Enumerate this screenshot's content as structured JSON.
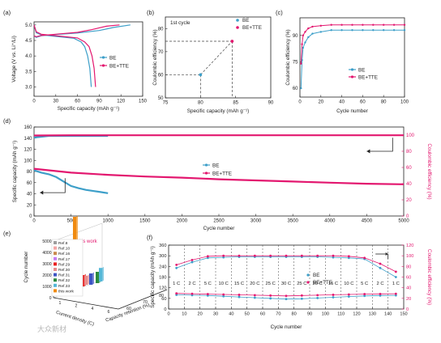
{
  "watermark": "大众新材",
  "colors": {
    "BE": "#3d9fc9",
    "BE_TTE": "#e3176f",
    "dark_line": "#333333"
  },
  "chart_data": [
    {
      "id": "a",
      "panel_label": "(a)",
      "type": "line",
      "xlabel": "Specific capacity (mAh g⁻¹)",
      "ylabel": "Voltage (V vs. Li⁺/Li)",
      "xlim": [
        0,
        150
      ],
      "ylim": [
        2.7,
        5.1
      ],
      "xticks": [
        0,
        30,
        60,
        90,
        120,
        150
      ],
      "yticks": [
        3.0,
        3.5,
        4.0,
        4.5,
        5.0
      ],
      "legend": [
        "BE",
        "BE+TTE"
      ],
      "legend_position": "right",
      "series": [
        {
          "name": "BE",
          "color": "#3d9fc9",
          "charge": [
            [
              0,
              4.65
            ],
            [
              3,
              4.6
            ],
            [
              10,
              4.65
            ],
            [
              30,
              4.69
            ],
            [
              60,
              4.74
            ],
            [
              90,
              4.82
            ],
            [
              110,
              4.92
            ],
            [
              133,
              5.0
            ]
          ],
          "discharge": [
            [
              0,
              5.0
            ],
            [
              3,
              4.75
            ],
            [
              10,
              4.68
            ],
            [
              30,
              4.63
            ],
            [
              55,
              4.57
            ],
            [
              65,
              4.45
            ],
            [
              70,
              4.3
            ],
            [
              74,
              4.0
            ],
            [
              77,
              3.6
            ],
            [
              79,
              3.0
            ]
          ]
        },
        {
          "name": "BE+TTE",
          "color": "#e3176f",
          "charge": [
            [
              0,
              4.65
            ],
            [
              3,
              4.62
            ],
            [
              10,
              4.66
            ],
            [
              30,
              4.7
            ],
            [
              60,
              4.76
            ],
            [
              80,
              4.85
            ],
            [
              100,
              4.96
            ],
            [
              118,
              5.0
            ]
          ],
          "discharge": [
            [
              0,
              5.0
            ],
            [
              3,
              4.78
            ],
            [
              10,
              4.7
            ],
            [
              35,
              4.64
            ],
            [
              60,
              4.58
            ],
            [
              70,
              4.45
            ],
            [
              76,
              4.3
            ],
            [
              80,
              4.0
            ],
            [
              83,
              3.6
            ],
            [
              85,
              3.0
            ]
          ]
        }
      ]
    },
    {
      "id": "b",
      "panel_label": "(b)",
      "type": "scatter",
      "title": "1st cycle",
      "xlabel": "Specific capacity (mAh g⁻¹)",
      "ylabel": "Coulombic efficiency (%)",
      "xlim": [
        75,
        90
      ],
      "ylim": [
        50,
        85
      ],
      "xticks": [
        75,
        80,
        85,
        90
      ],
      "yticks": [
        50,
        60,
        70,
        80
      ],
      "legend": [
        "BE",
        "BE+TTE"
      ],
      "legend_position": "top-right",
      "series": [
        {
          "name": "BE",
          "color": "#3d9fc9",
          "points": [
            [
              80,
              60
            ]
          ]
        },
        {
          "name": "BE+TTE",
          "color": "#e3176f",
          "points": [
            [
              84.5,
              74.5
            ]
          ]
        }
      ]
    },
    {
      "id": "c",
      "panel_label": "(c)",
      "type": "line",
      "xlabel": "Cycle number",
      "ylabel": "Coulombic efficiency (%)",
      "xlim": [
        0,
        100
      ],
      "ylim": [
        55,
        100
      ],
      "xticks": [
        0,
        20,
        40,
        60,
        80,
        100
      ],
      "yticks": [
        60,
        75,
        90
      ],
      "legend": [
        "BE",
        "BE+TTE"
      ],
      "legend_position": "center-right",
      "series": [
        {
          "name": "BE",
          "color": "#3d9fc9",
          "x": [
            1,
            2,
            3,
            5,
            8,
            12,
            20,
            30,
            40,
            50,
            60,
            70,
            80,
            90,
            100
          ],
          "values": [
            60,
            76,
            83,
            86,
            89,
            91,
            92,
            93,
            93,
            93,
            93,
            93,
            93,
            93,
            93
          ]
        },
        {
          "name": "BE+TTE",
          "color": "#e3176f",
          "x": [
            1,
            2,
            3,
            5,
            8,
            12,
            20,
            30,
            40,
            50,
            60,
            70,
            80,
            90,
            100
          ],
          "values": [
            74,
            85,
            90,
            92,
            94,
            95,
            95.5,
            96,
            96,
            96,
            96,
            96,
            96,
            96,
            96
          ]
        }
      ]
    },
    {
      "id": "d",
      "panel_label": "(d)",
      "type": "line",
      "xlabel": "Cycle number",
      "ylabel": "Specific capacity (mAh g⁻¹)",
      "ylabel_right": "Coulombic efficiency (%)",
      "xlim": [
        0,
        5000
      ],
      "ylim": [
        0,
        160
      ],
      "ylim_right": [
        0,
        110
      ],
      "xticks": [
        0,
        500,
        1000,
        1500,
        2000,
        2500,
        3000,
        3500,
        4000,
        4500,
        5000
      ],
      "yticks": [
        0,
        20,
        40,
        60,
        80,
        100,
        120,
        140,
        160
      ],
      "yticks_right": [
        0,
        20,
        40,
        60,
        80,
        100
      ],
      "legend": [
        "BE",
        "BE+TTE"
      ],
      "legend_position": "center",
      "series": [
        {
          "name": "BE",
          "axis": "capacity",
          "color": "#3d9fc9",
          "x": [
            0,
            100,
            200,
            300,
            400,
            500,
            600,
            700,
            800,
            900,
            1000
          ],
          "values": [
            82,
            78,
            75,
            70,
            62,
            54,
            50,
            47,
            45,
            43,
            41
          ]
        },
        {
          "name": "BE+TTE",
          "axis": "capacity",
          "color": "#e3176f",
          "x": [
            0,
            500,
            1000,
            1500,
            2000,
            2500,
            3000,
            3500,
            4000,
            4500,
            5000
          ],
          "values": [
            85,
            78,
            74,
            71,
            69,
            66,
            64,
            62,
            60,
            58,
            57
          ]
        },
        {
          "name": "BE",
          "axis": "efficiency",
          "color": "#3d9fc9",
          "x": [
            0,
            200,
            400,
            600,
            800,
            1000
          ],
          "values": [
            97,
            99,
            99,
            99,
            99,
            99
          ]
        },
        {
          "name": "BE+TTE",
          "axis": "efficiency",
          "color": "#e3176f",
          "x": [
            0,
            500,
            1000,
            2000,
            3000,
            4000,
            5000
          ],
          "values": [
            99.5,
            99.8,
            99.8,
            99.8,
            99.8,
            99.8,
            99.8
          ]
        }
      ]
    },
    {
      "id": "e",
      "panel_label": "(e)",
      "type": "bar3d",
      "zlabel": "Cycle number",
      "xlabel": "Current density (C)",
      "ylabel": "Capacity retention (%)",
      "zticks": [
        0,
        1000,
        2000,
        3000,
        4000,
        5000
      ],
      "xticks": [
        1,
        2,
        4,
        6
      ],
      "yticks": [
        60,
        70,
        80
      ],
      "annotation": "this work",
      "legend": [
        "Ref.8",
        "Ref.10",
        "Ref.16",
        "Ref.17",
        "Ref.29",
        "Ref.30",
        "Ref.31",
        "Ref.32",
        "Ref.33",
        "this work"
      ],
      "bar_colors": [
        "#9e9e9e",
        "#f4a6a6",
        "#c98a4e",
        "#c77cf2",
        "#ea2020",
        "#e88c8c",
        "#3d54c4",
        "#2b8a3e",
        "#55b8d8",
        "#f08a10"
      ],
      "bars": [
        {
          "name": "Ref.8",
          "cycles": 200
        },
        {
          "name": "Ref.10",
          "cycles": 500
        },
        {
          "name": "Ref.16",
          "cycles": 300
        },
        {
          "name": "Ref.17",
          "cycles": 500
        },
        {
          "name": "Ref.29",
          "cycles": 1000
        },
        {
          "name": "Ref.30",
          "cycles": 800
        },
        {
          "name": "Ref.31",
          "cycles": 1000
        },
        {
          "name": "Ref.32",
          "cycles": 1000
        },
        {
          "name": "Ref.33",
          "cycles": 1200
        },
        {
          "name": "this work",
          "cycles": 5000
        }
      ]
    },
    {
      "id": "f",
      "panel_label": "(f)",
      "type": "scatter",
      "xlabel": "Cycle number",
      "ylabel": "Specific capacity (mAh g⁻¹)",
      "ylabel_right": "Coulombic efficiency (%)",
      "xlim": [
        0,
        150
      ],
      "ylim": [
        0,
        360
      ],
      "ylim_right": [
        0,
        120
      ],
      "xticks": [
        0,
        10,
        20,
        30,
        40,
        50,
        60,
        70,
        80,
        90,
        100,
        110,
        120,
        130,
        140,
        150
      ],
      "yticks": [
        0,
        60,
        120,
        180,
        240,
        300,
        360
      ],
      "yticks_right": [
        0,
        20,
        40,
        60,
        80,
        100,
        120
      ],
      "rate_labels": [
        "1 C",
        "2 C",
        "5 C",
        "10 C",
        "15 C",
        "20 C",
        "25 C",
        "30 C",
        "25 C",
        "20 C",
        "15 C",
        "10 C",
        "5 C",
        "2 C",
        "1 C"
      ],
      "legend": [
        "BE",
        "BE+TTE"
      ],
      "legend_position": "center",
      "series": [
        {
          "name": "BE",
          "axis": "capacity",
          "color": "#3d9fc9",
          "x": [
            5,
            15,
            25,
            35,
            45,
            55,
            65,
            75,
            85,
            95,
            105,
            115,
            125,
            135,
            145
          ],
          "values": [
            80,
            78,
            76,
            72,
            68,
            64,
            60,
            56,
            58,
            62,
            66,
            70,
            74,
            76,
            77
          ]
        },
        {
          "name": "BE+TTE",
          "axis": "capacity",
          "color": "#e3176f",
          "x": [
            5,
            15,
            25,
            35,
            45,
            55,
            65,
            75,
            85,
            95,
            105,
            115,
            125,
            135,
            145
          ],
          "values": [
            88,
            86,
            84,
            82,
            80,
            78,
            76,
            74,
            76,
            78,
            80,
            82,
            84,
            85,
            86
          ]
        },
        {
          "name": "BE",
          "axis": "efficiency",
          "color": "#3d9fc9",
          "x": [
            5,
            15,
            25,
            35,
            45,
            55,
            65,
            75,
            85,
            95,
            105,
            115,
            125,
            135,
            145
          ],
          "values": [
            77,
            88,
            96,
            97,
            98,
            98,
            98,
            98,
            98,
            98,
            97,
            96,
            94,
            77,
            60
          ]
        },
        {
          "name": "BE+TTE",
          "axis": "efficiency",
          "color": "#e3176f",
          "x": [
            5,
            15,
            25,
            35,
            45,
            55,
            65,
            75,
            85,
            95,
            105,
            115,
            125,
            135,
            145
          ],
          "values": [
            83,
            92,
            99,
            100,
            100,
            100,
            100,
            100,
            100,
            100,
            100,
            99,
            96,
            85,
            70
          ]
        }
      ]
    }
  ]
}
